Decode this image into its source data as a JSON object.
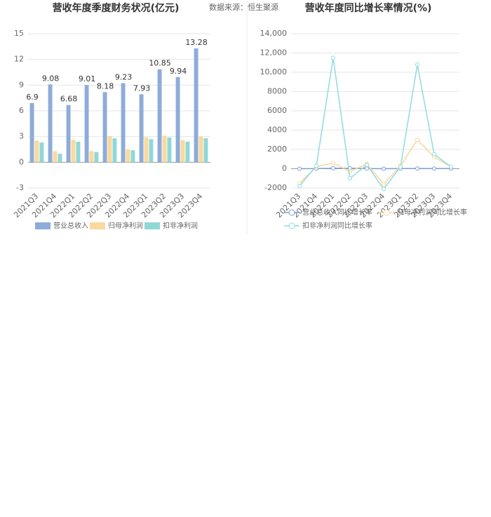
{
  "source": "数据来源：恒生聚源",
  "chart_data": [
    {
      "type": "bar",
      "title": "营收年度季度财务状况(亿元)",
      "categories": [
        "2021Q3",
        "2021Q4",
        "2022Q1",
        "2022Q2",
        "2022Q3",
        "2022Q4",
        "2023Q1",
        "2023Q2",
        "2023Q3",
        "2023Q4"
      ],
      "series": [
        {
          "name": "营业总收入",
          "color": "#8eacd8",
          "values": [
            6.9,
            9.08,
            6.68,
            9.01,
            8.18,
            9.23,
            7.93,
            10.85,
            9.94,
            13.28
          ]
        },
        {
          "name": "归母净利润",
          "color": "#fbd89c",
          "values": [
            2.53,
            1.3,
            2.61,
            1.3,
            3.06,
            1.5,
            2.91,
            3.1,
            2.6,
            3.0
          ]
        },
        {
          "name": "扣非净利润",
          "color": "#8fd8d8",
          "values": [
            2.3,
            1.0,
            2.4,
            1.2,
            2.8,
            1.4,
            2.7,
            2.9,
            2.4,
            2.8
          ]
        }
      ],
      "ylim": [
        -3,
        15
      ],
      "yticks": [
        -3,
        0,
        3,
        6,
        9,
        12,
        15
      ],
      "grid": true,
      "legend": "bottom"
    },
    {
      "type": "line",
      "title": "营收年度同比增长率情况(%)",
      "categories": [
        "2021Q3",
        "2021Q4",
        "2022Q1",
        "2022Q2",
        "2022Q3",
        "2022Q4",
        "2023Q1",
        "2023Q2",
        "2023Q3",
        "2023Q4"
      ],
      "series": [
        {
          "name": "营业总收入同比增长率",
          "color": "#7b9fd4",
          "values": [
            -2.34,
            10.2,
            45.75,
            41.98,
            18.43,
            1.69,
            18.84,
            20.98,
            21.58,
            13.84
          ]
        },
        {
          "name": "归母净利润同比增长率",
          "color": "#fcd49a",
          "values": [
            -1500,
            200,
            600,
            -300,
            500,
            -1600,
            300,
            3000,
            1200,
            200
          ]
        },
        {
          "name": "扣非净利润同比增长率",
          "color": "#8edce0",
          "values": [
            -1800,
            300,
            11500,
            -1000,
            400,
            -2100,
            200,
            10800,
            1500,
            200
          ]
        }
      ],
      "ylim": [
        -2000,
        14000
      ],
      "yticks": [
        -2000,
        0,
        2000,
        4000,
        6000,
        8000,
        {
          "value": 10000,
          "label": "10,000"
        },
        {
          "value": 12000,
          "label": "12,000"
        },
        {
          "value": 14000,
          "label": "14,000"
        }
      ],
      "grid": true,
      "legend": "bottom"
    }
  ]
}
